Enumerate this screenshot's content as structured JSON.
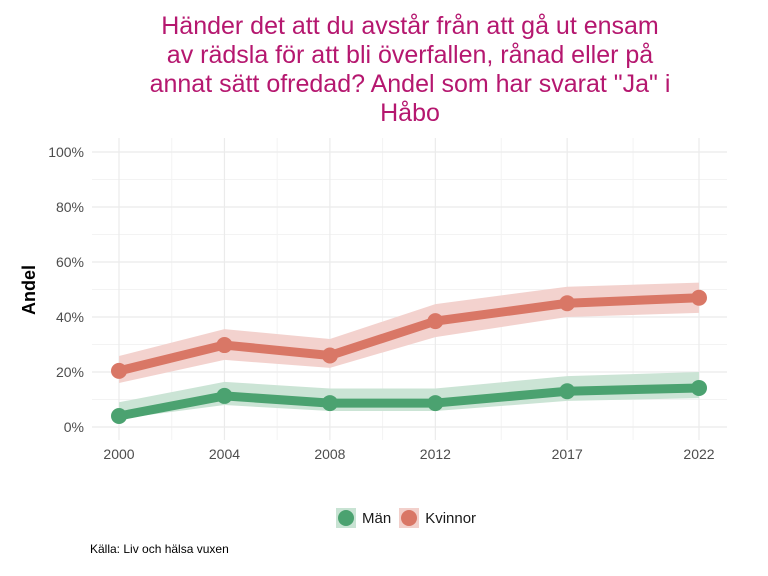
{
  "chart_data": {
    "type": "line",
    "title": "Händer det att du avstår från att gå ut ensam av rädsla för att bli överfallen, rånad eller på annat sätt ofredad? Andel som har svarat \"Ja\" i Håbo",
    "title_lines": [
      "Händer det att du avstår från att gå ut ensam",
      "av rädsla för att bli överfallen, rånad eller på",
      "annat sätt ofredad? Andel som har svarat \"Ja\" i",
      "Håbo"
    ],
    "xlabel": "",
    "ylabel": "Andel",
    "x": [
      "2000",
      "2004",
      "2008",
      "2012",
      "2017",
      "2022"
    ],
    "x_numeric": [
      2000,
      2004,
      2008,
      2012,
      2017,
      2022
    ],
    "ylim": [
      0,
      100
    ],
    "yticks": [
      0,
      20,
      40,
      60,
      80,
      100
    ],
    "ytick_labels": [
      "0%",
      "20%",
      "40%",
      "60%",
      "80%",
      "100%"
    ],
    "grid": true,
    "legend_position": "bottom",
    "series": [
      {
        "name": "Män",
        "color": "#4BA270",
        "band_color": "#C8E3D3",
        "values": [
          4,
          11.3,
          8.7,
          8.7,
          13,
          14.2
        ],
        "lower": [
          3,
          8,
          5.8,
          5.8,
          9.5,
          10.5
        ],
        "upper": [
          9,
          16.4,
          14,
          14,
          18.5,
          20
        ]
      },
      {
        "name": "Kvinnor",
        "color": "#D97766",
        "band_color": "#F2D0CB",
        "values": [
          20.4,
          29.8,
          26,
          38.5,
          45,
          47
        ],
        "lower": [
          16,
          24.4,
          21.5,
          32.7,
          40,
          41.5
        ],
        "upper": [
          25.8,
          35.6,
          32,
          44.7,
          51,
          52.5
        ]
      }
    ],
    "caption": "Källa: Liv och hälsa vuxen"
  }
}
